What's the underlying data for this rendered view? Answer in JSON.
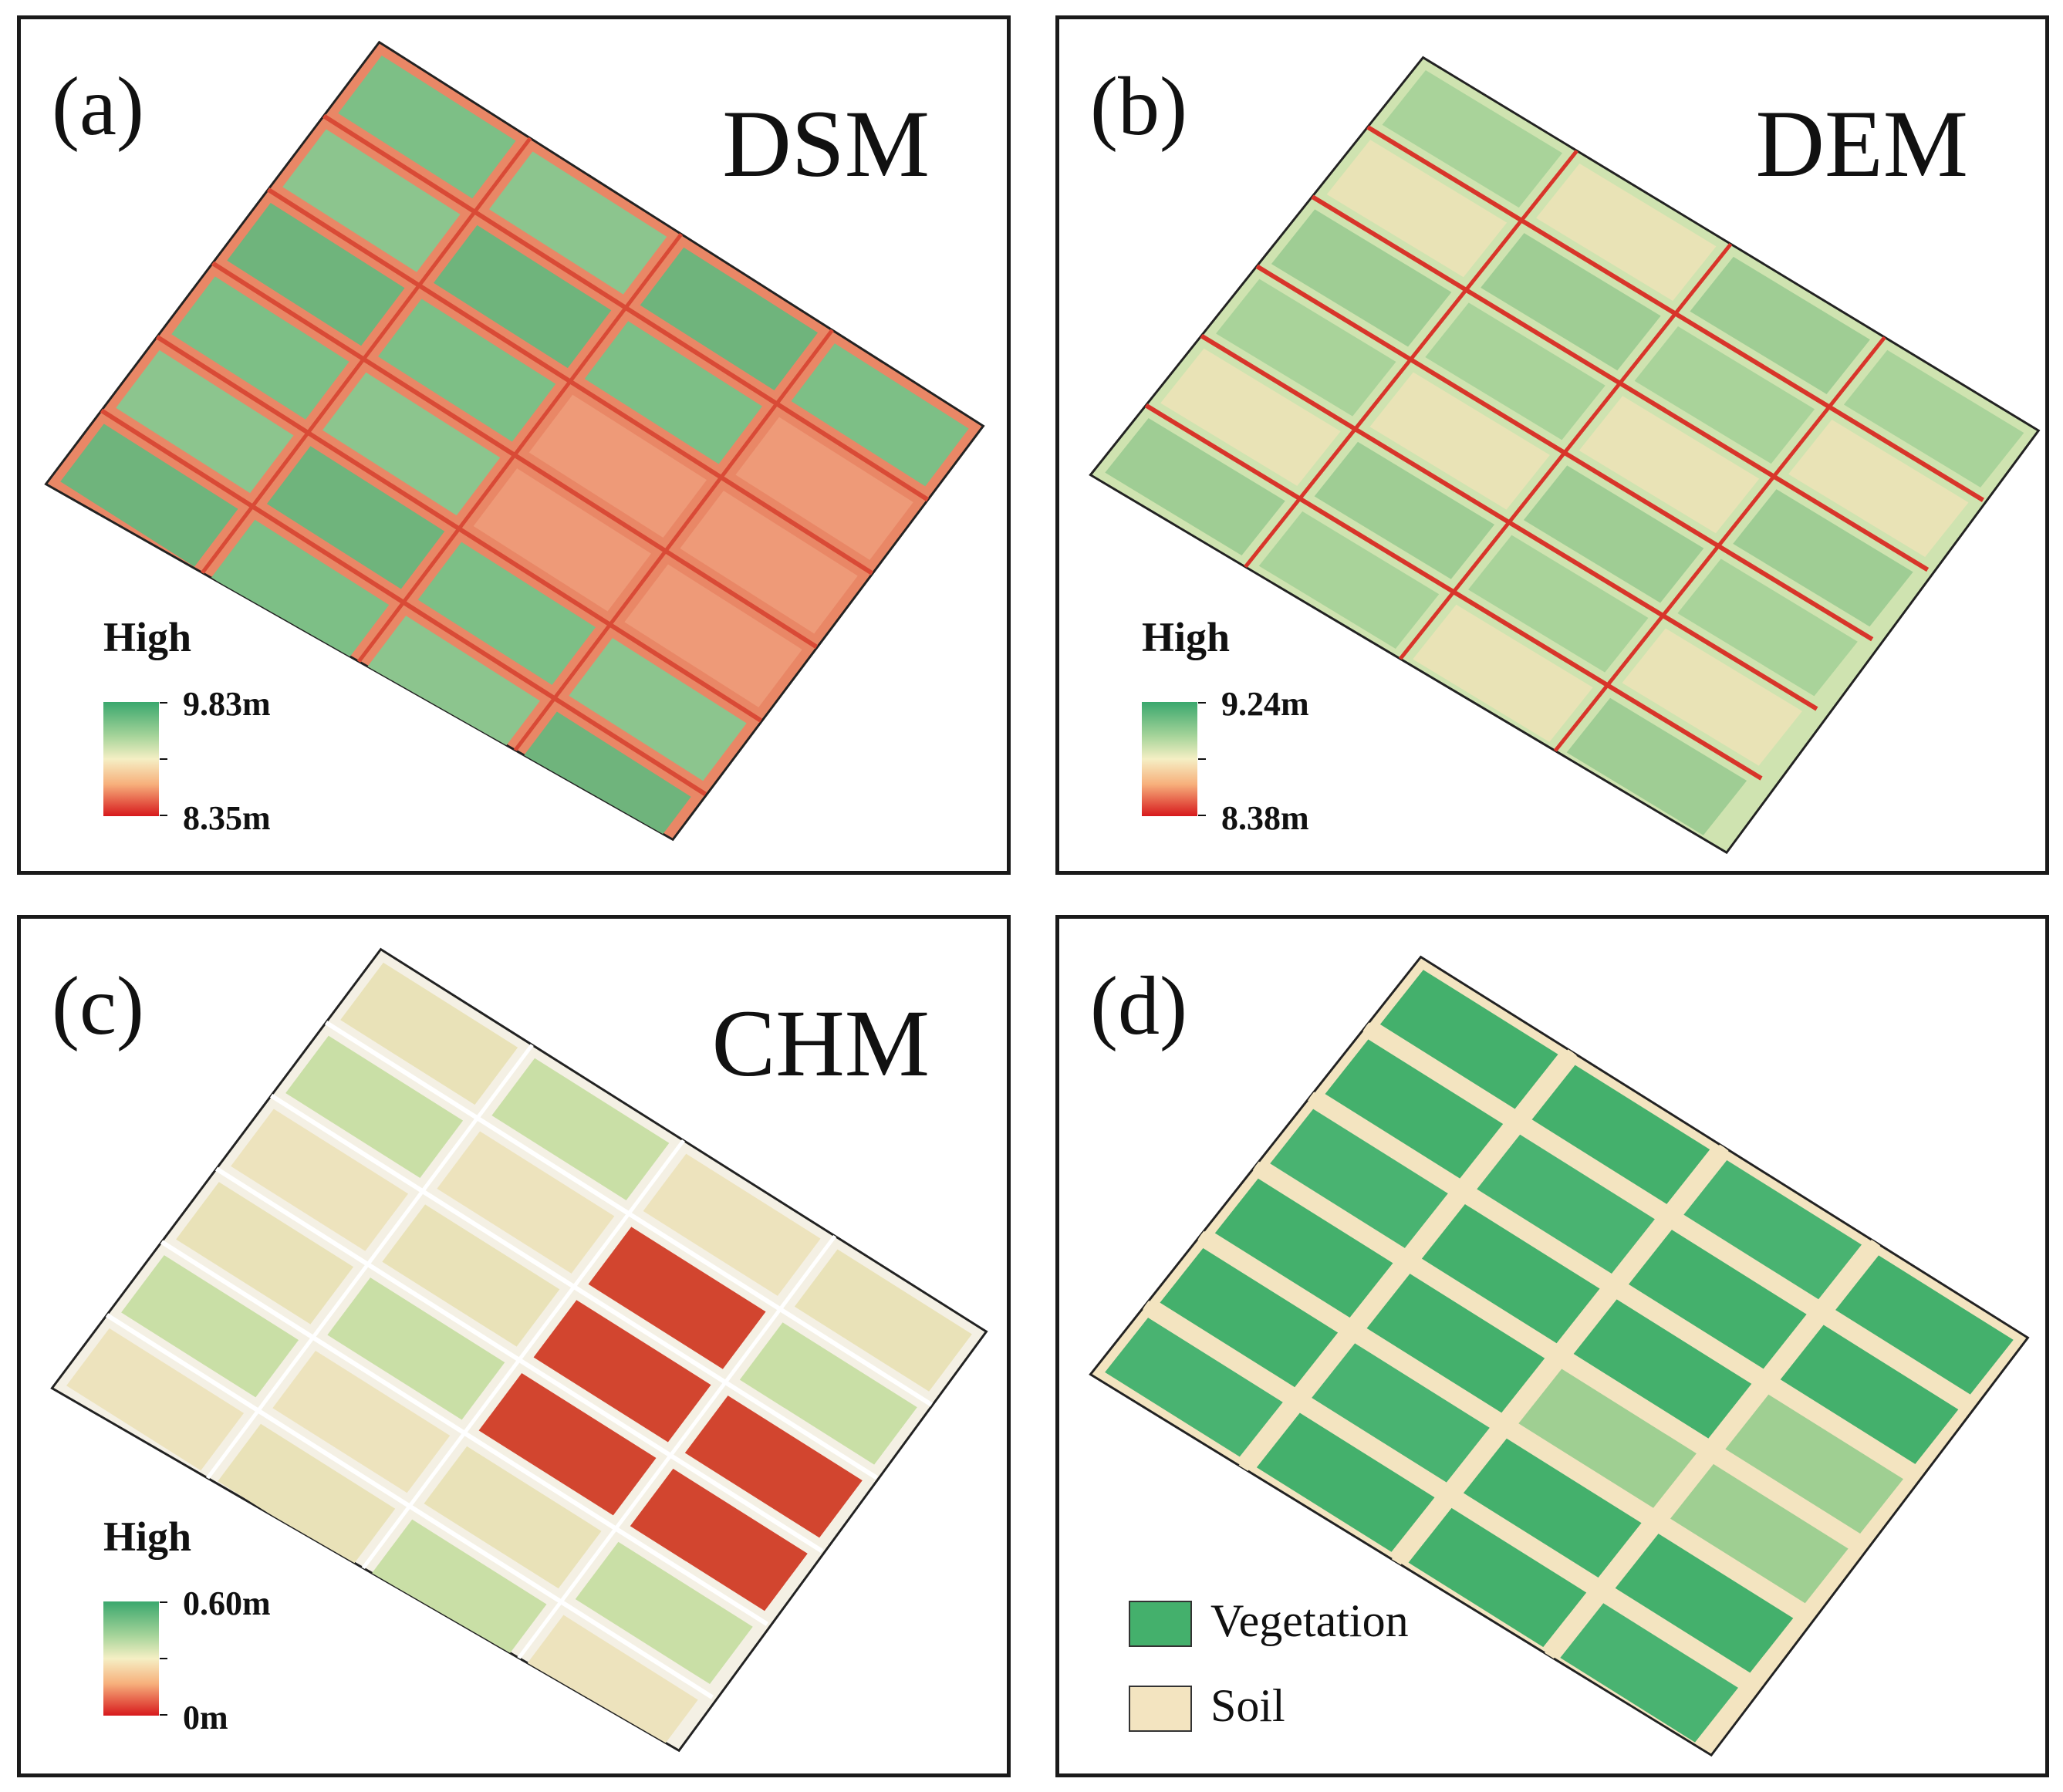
{
  "panels": [
    {
      "id": "a",
      "letter": "(a)",
      "title": "DSM",
      "legend": {
        "heading": "High",
        "max": "9.83m",
        "min": "8.35m"
      }
    },
    {
      "id": "b",
      "letter": "(b)",
      "title": "DEM",
      "legend": {
        "heading": "High",
        "max": "9.24m",
        "min": "8.38m"
      }
    },
    {
      "id": "c",
      "letter": "(c)",
      "title": "CHM",
      "legend": {
        "heading": "High",
        "max": "0.60m",
        "min": "0m"
      }
    },
    {
      "id": "d",
      "letter": "(d)",
      "title": "",
      "legend": {
        "classes": [
          {
            "label": "Vegetation",
            "color": "#44b06c"
          },
          {
            "label": "Soil",
            "color": "#f3e4c0"
          }
        ]
      }
    }
  ],
  "colors": {
    "ramp_high": "#3aa76d",
    "ramp_mid": "#f5efc4",
    "ramp_low": "#d7191c",
    "frame": "#1a1a1a"
  }
}
